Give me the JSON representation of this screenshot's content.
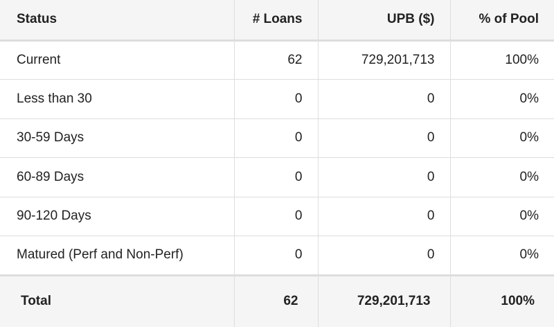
{
  "table": {
    "header": [
      "Status",
      "# Loans",
      "UPB ($)",
      "% of Pool"
    ],
    "rows": [
      [
        "Current",
        "62",
        "729,201,713",
        "100%"
      ],
      [
        "Less than 30",
        "0",
        "0",
        "0%"
      ],
      [
        "30-59 Days",
        "0",
        "0",
        "0%"
      ],
      [
        "60-89 Days",
        "0",
        "0",
        "0%"
      ],
      [
        "90-120 Days",
        "0",
        "0",
        "0%"
      ],
      [
        "Matured (Perf and Non-Perf)",
        "0",
        "0",
        "0%"
      ]
    ],
    "total": [
      "Total",
      "62",
      "729,201,713",
      "100%"
    ]
  }
}
